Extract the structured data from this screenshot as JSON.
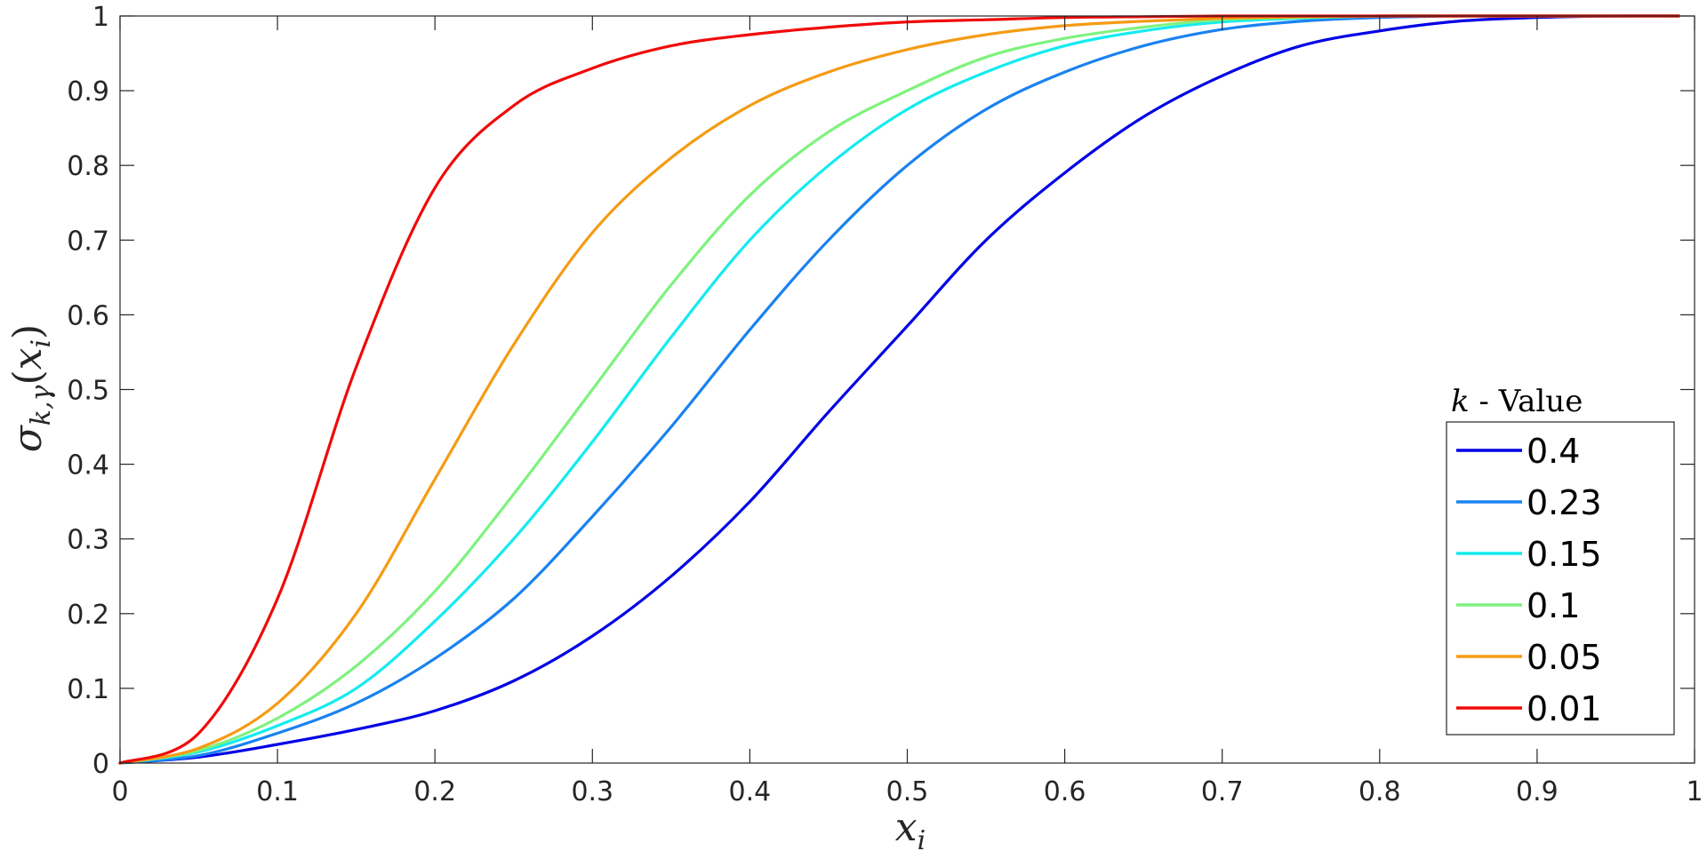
{
  "chart_data": {
    "type": "line",
    "title": "",
    "xlabel": {
      "base": "x",
      "sub": "i"
    },
    "ylabel": {
      "base": "σ",
      "sub": "k,γ",
      "arg_open": "(",
      "arg_base": "x",
      "arg_sub": "i",
      "arg_close": ")"
    },
    "xlim": [
      0,
      1
    ],
    "ylim": [
      0,
      1
    ],
    "x_ticks": [
      0,
      0.1,
      0.2,
      0.3,
      0.4,
      0.5,
      0.6,
      0.7,
      0.8,
      0.9,
      1
    ],
    "x_tick_labels": [
      "0",
      "0.1",
      "0.2",
      "0.3",
      "0.4",
      "0.5",
      "0.6",
      "0.7",
      "0.8",
      "0.9",
      "1"
    ],
    "y_ticks": [
      0,
      0.1,
      0.2,
      0.3,
      0.4,
      0.5,
      0.6,
      0.7,
      0.8,
      0.9,
      1
    ],
    "y_tick_labels": [
      "0",
      "0.1",
      "0.2",
      "0.3",
      "0.4",
      "0.5",
      "0.6",
      "0.7",
      "0.8",
      "0.9",
      "1"
    ],
    "grid": false,
    "legend": {
      "position": "bottom-right",
      "title_var": "k",
      "title_rest": " - Value"
    },
    "x": [
      0,
      0.05,
      0.1,
      0.15,
      0.2,
      0.25,
      0.3,
      0.35,
      0.4,
      0.45,
      0.5,
      0.55,
      0.6,
      0.65,
      0.7,
      0.75,
      0.8,
      0.85,
      0.9,
      0.95,
      0.99
    ],
    "series": [
      {
        "name": "0.4",
        "color": "#0000e6",
        "values": [
          0,
          0.008,
          0.025,
          0.045,
          0.07,
          0.11,
          0.17,
          0.25,
          0.35,
          0.47,
          0.585,
          0.7,
          0.79,
          0.865,
          0.92,
          0.96,
          0.98,
          0.993,
          0.998,
          1.0,
          1.0
        ]
      },
      {
        "name": "0.23",
        "color": "#1a82f0",
        "values": [
          0,
          0.01,
          0.04,
          0.08,
          0.14,
          0.22,
          0.33,
          0.45,
          0.58,
          0.7,
          0.8,
          0.875,
          0.925,
          0.96,
          0.982,
          0.993,
          0.998,
          1.0,
          1.0,
          1.0,
          1.0
        ]
      },
      {
        "name": "0.15",
        "color": "#14ebf0",
        "values": [
          0,
          0.015,
          0.05,
          0.1,
          0.19,
          0.3,
          0.43,
          0.57,
          0.7,
          0.8,
          0.875,
          0.925,
          0.96,
          0.98,
          0.992,
          0.997,
          1.0,
          1.0,
          1.0,
          1.0,
          1.0
        ]
      },
      {
        "name": "0.1",
        "color": "#7ef27e",
        "values": [
          0,
          0.017,
          0.06,
          0.13,
          0.23,
          0.36,
          0.5,
          0.64,
          0.76,
          0.845,
          0.9,
          0.945,
          0.97,
          0.985,
          0.995,
          0.998,
          1.0,
          1.0,
          1.0,
          1.0,
          1.0
        ]
      },
      {
        "name": "0.05",
        "color": "#f59b14",
        "values": [
          0,
          0.02,
          0.08,
          0.2,
          0.38,
          0.56,
          0.71,
          0.81,
          0.88,
          0.925,
          0.955,
          0.975,
          0.987,
          0.993,
          0.997,
          0.999,
          1.0,
          1.0,
          1.0,
          1.0,
          1.0
        ]
      },
      {
        "name": "0.01",
        "color": "#f00a0a",
        "values": [
          0,
          0.04,
          0.22,
          0.53,
          0.77,
          0.88,
          0.93,
          0.96,
          0.975,
          0.985,
          0.992,
          0.995,
          0.998,
          0.999,
          1.0,
          1.0,
          1.0,
          1.0,
          1.0,
          1.0,
          1.0
        ]
      }
    ]
  }
}
